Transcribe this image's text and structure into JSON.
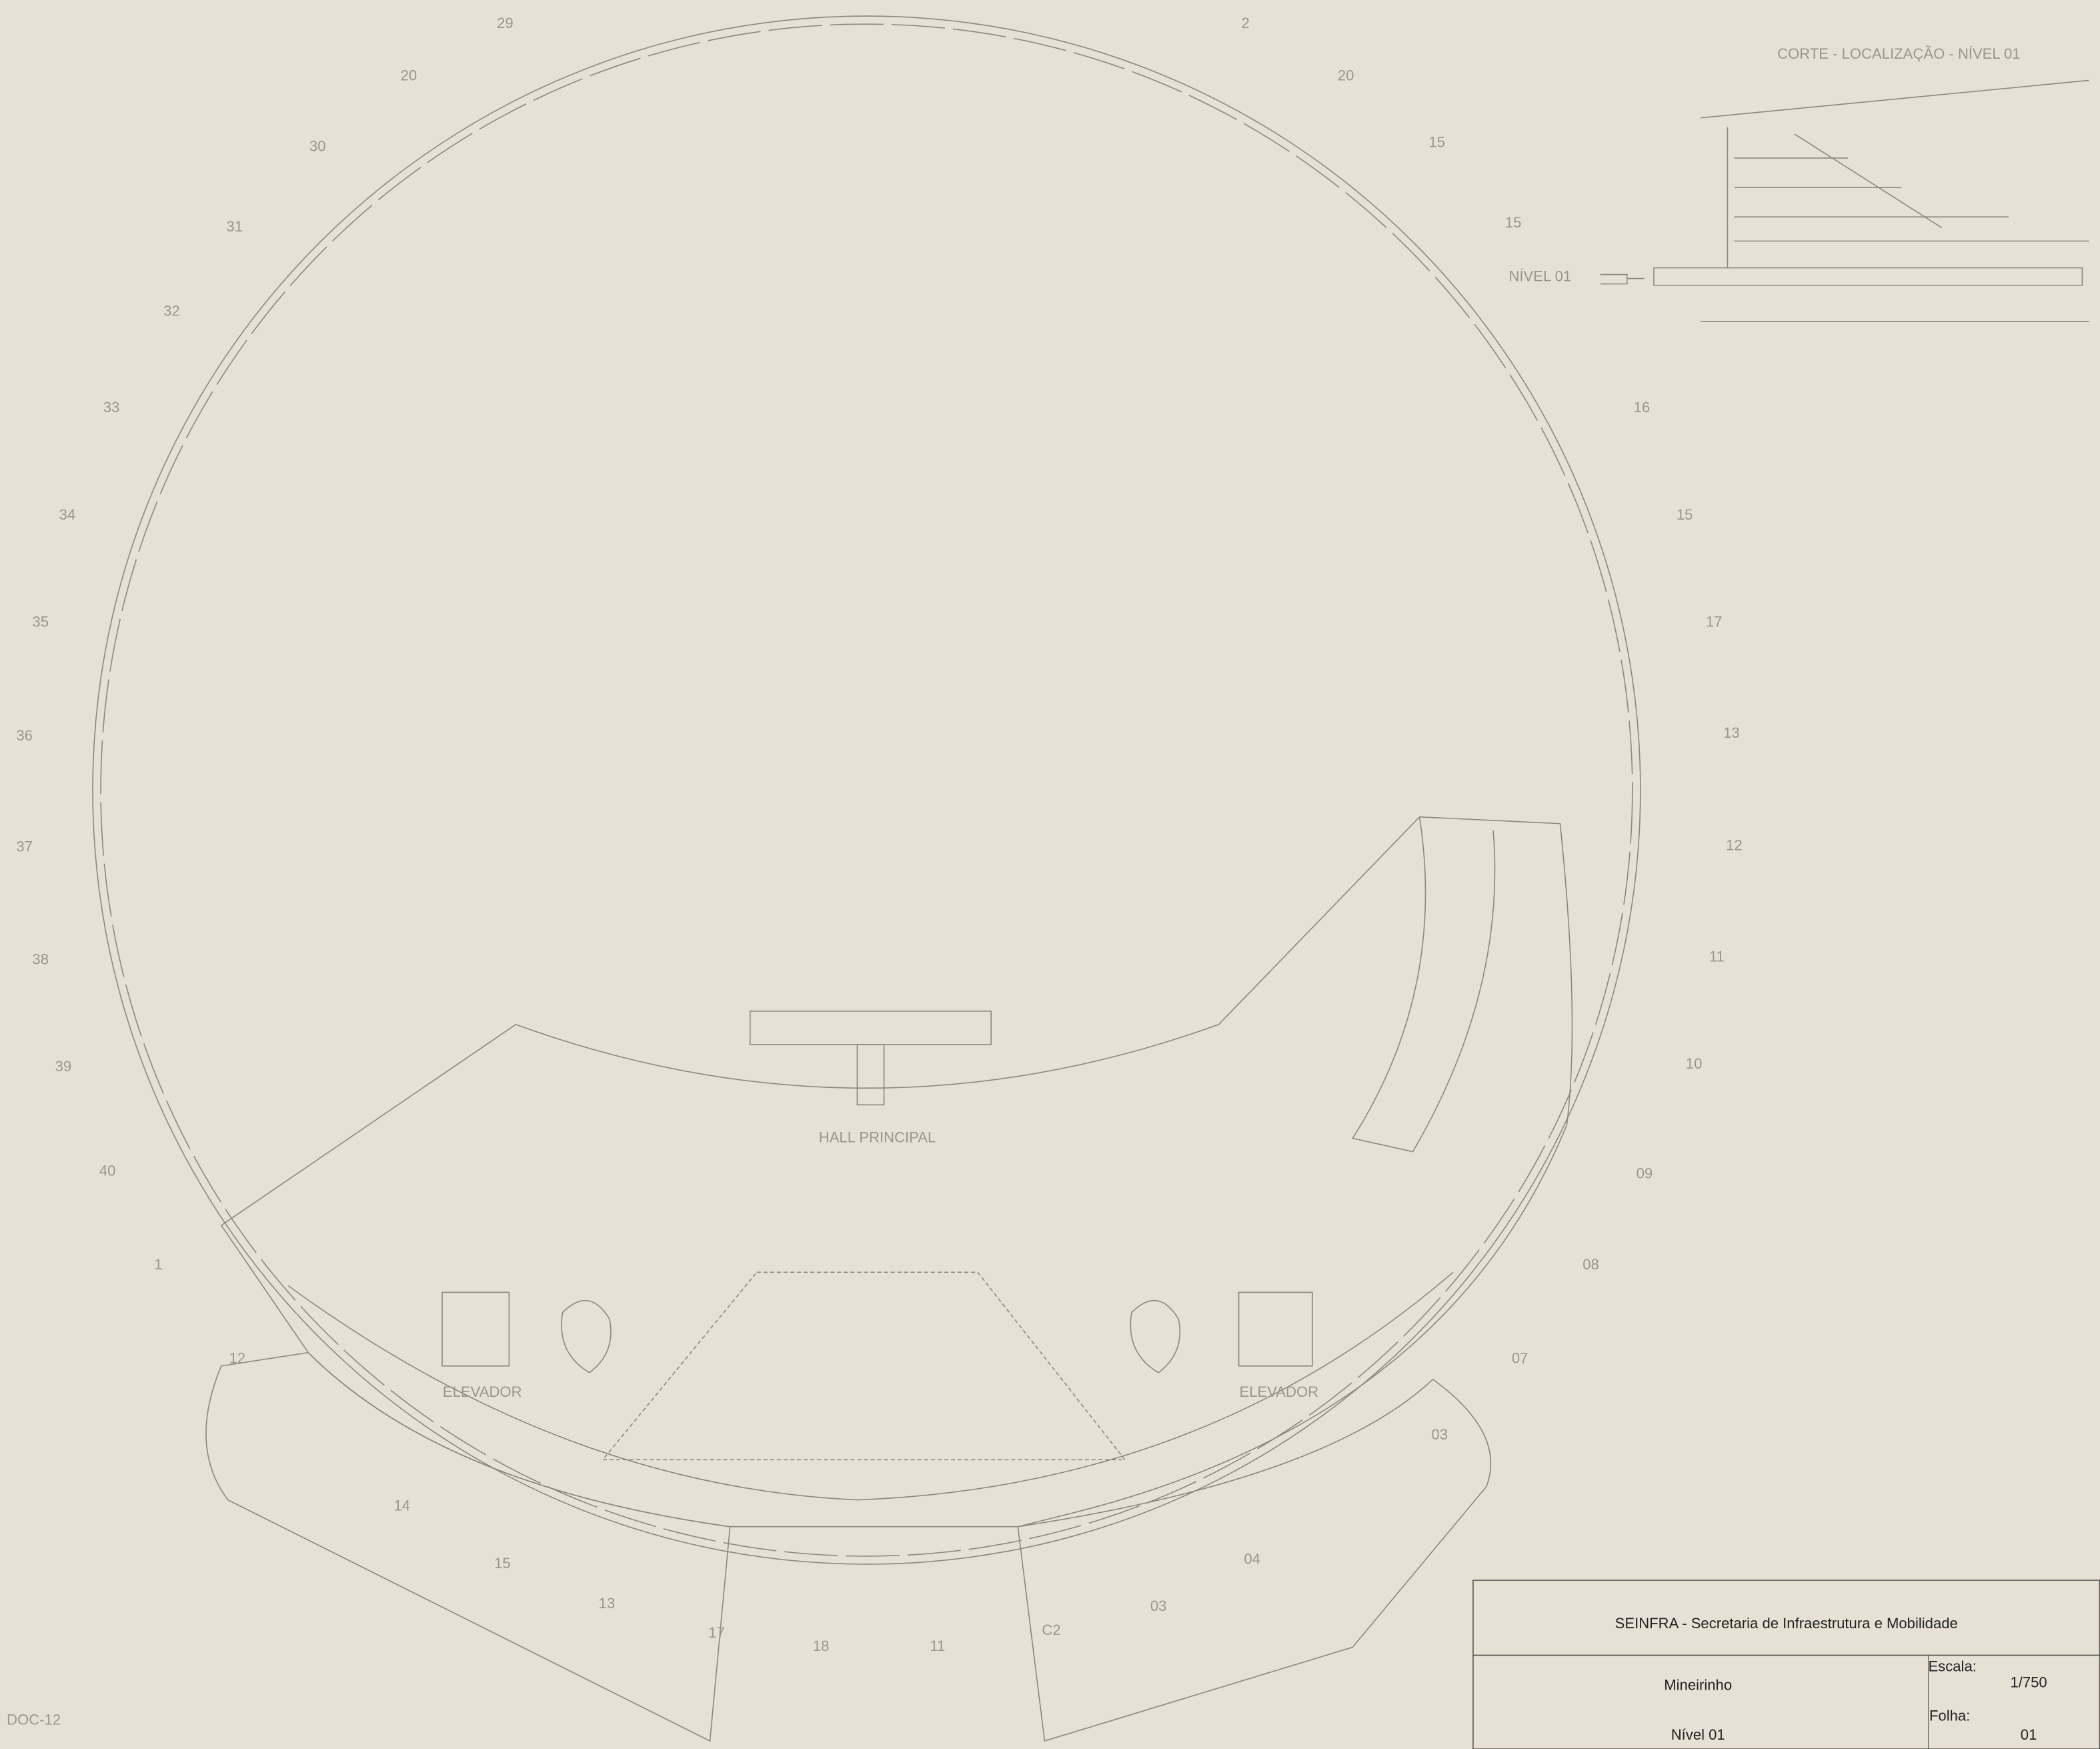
{
  "plan": {
    "section_title": "CORTE - LOCALIZAÇÃO - NÍVEL 01",
    "section_level": "NÍVEL 01",
    "hall_label": "HALL PRINCIPAL",
    "elevator_left": "ELEVADOR",
    "elevator_right": "ELEVADOR",
    "corner_code": "DOC-12",
    "grid_labels": [
      "29",
      "2",
      "20",
      "20",
      "30",
      "15",
      "31",
      "15",
      "32",
      "33",
      "16",
      "34",
      "15",
      "35",
      "17",
      "36",
      "13",
      "37",
      "12",
      "38",
      "11",
      "39",
      "10",
      "40",
      "09",
      "08",
      "07",
      "12",
      "03",
      "18",
      "11",
      "C2",
      "17",
      "13",
      "15",
      "14",
      "04",
      "03",
      "1"
    ]
  },
  "title_block": {
    "org": "SEINFRA - Secretaria de Infraestrutura e Mobilidade",
    "project": "Mineirinho",
    "level": "Nível 01",
    "scale_caption": "Escala:",
    "scale": "1/750",
    "sheet_caption": "Folha:",
    "sheet": "01"
  }
}
